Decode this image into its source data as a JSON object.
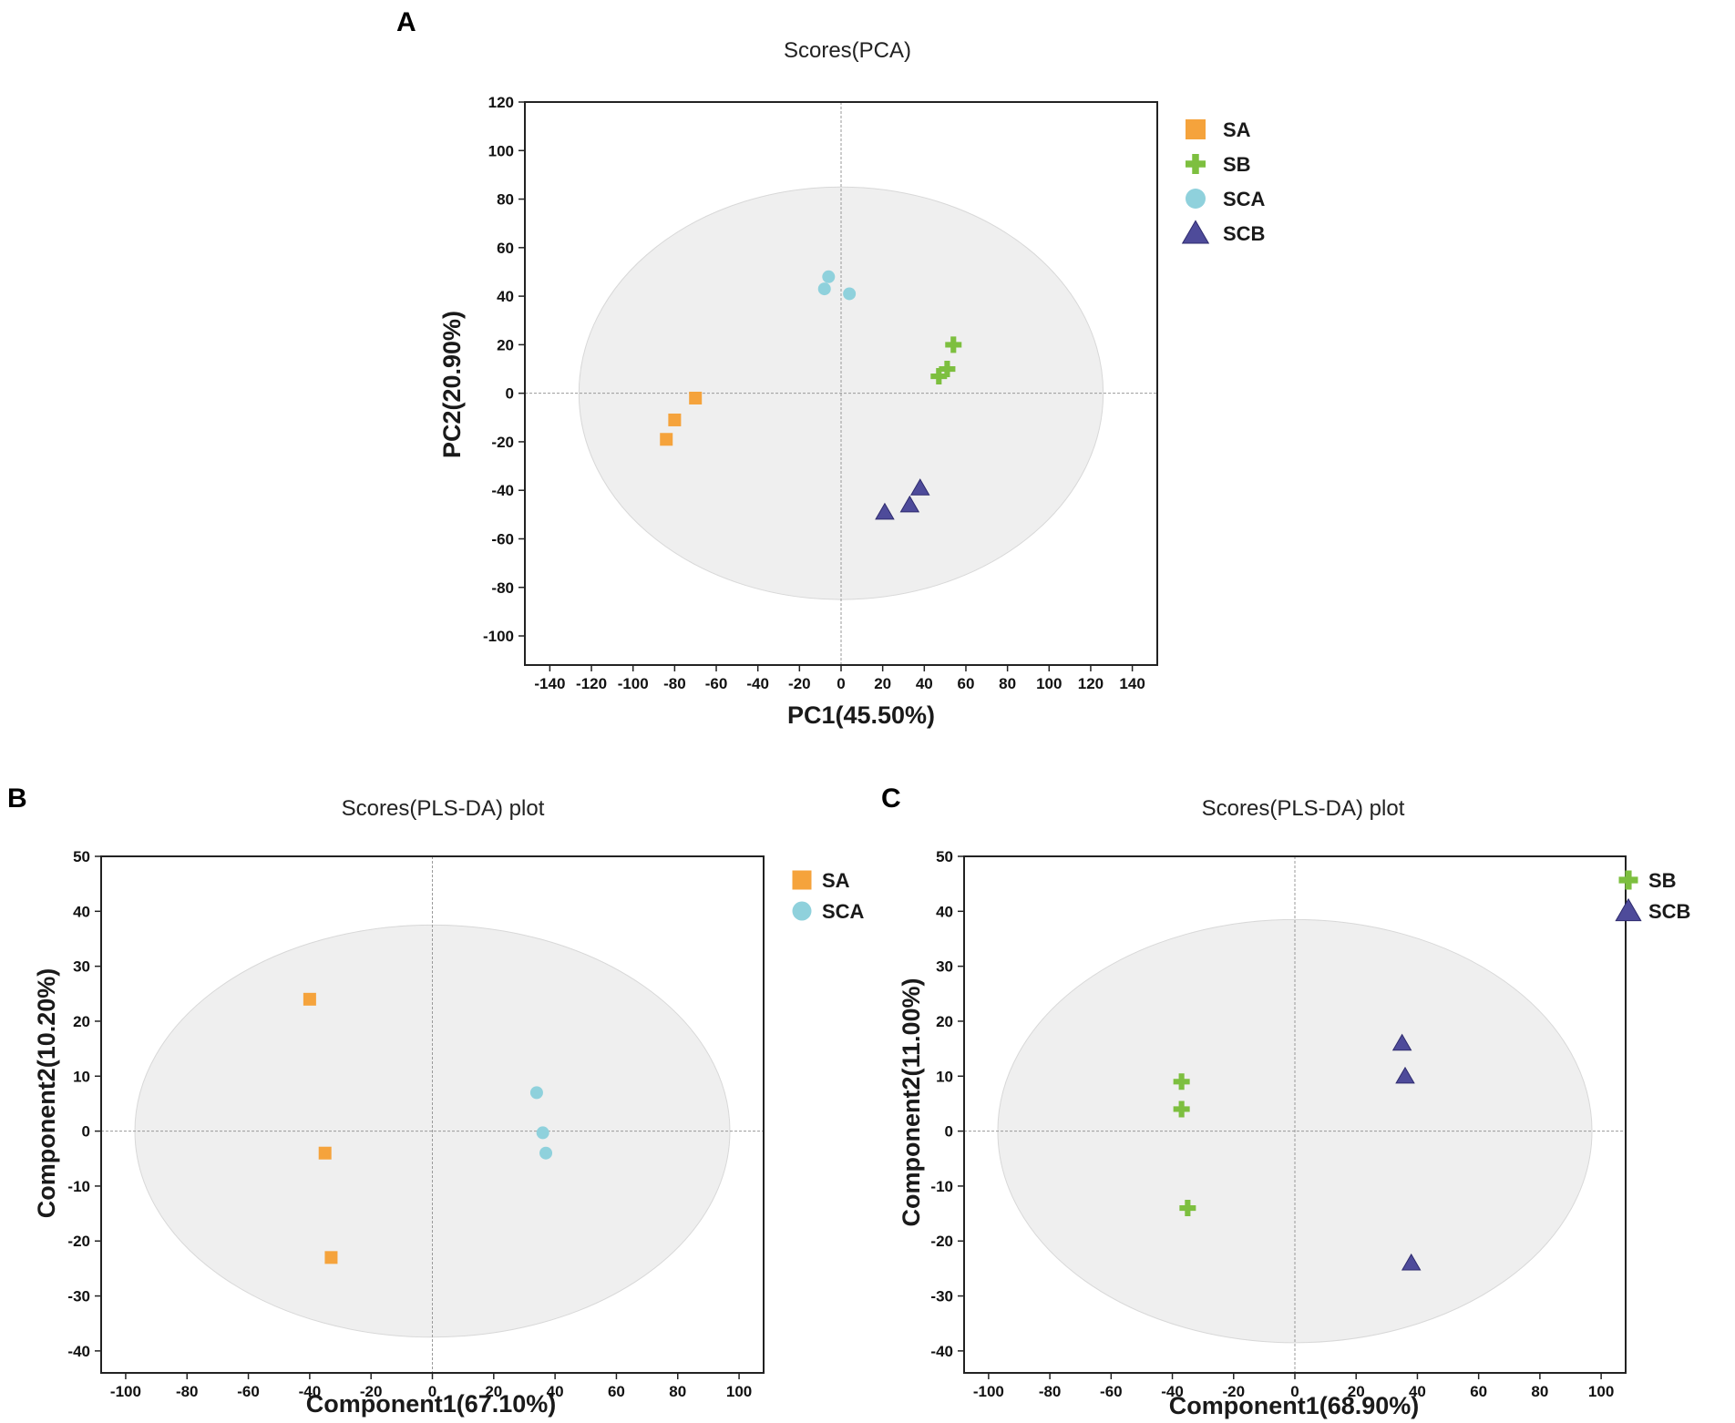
{
  "colors": {
    "SA": "#F5A33C",
    "SB": "#7DBF3F",
    "SCA": "#8FD1DC",
    "SCB": "#4E4B9A",
    "ellipse_fill": "#EFEFEF",
    "ellipse_stroke": "#D8D8D8",
    "frame": "#222222",
    "zero_line": "#9A9A9A"
  },
  "chart_data": [
    {
      "id": "A",
      "type": "scatter",
      "panel_label": "A",
      "title": "Scores(PCA)",
      "xlabel": "PC1(45.50%)",
      "ylabel": "PC2(20.90%)",
      "xlim": [
        -152,
        152
      ],
      "ylim": [
        -112,
        120
      ],
      "xticks": [
        -140,
        -120,
        -100,
        -80,
        -60,
        -40,
        -20,
        0,
        20,
        40,
        60,
        80,
        100,
        120,
        140
      ],
      "yticks": [
        -100,
        -80,
        -60,
        -40,
        -20,
        0,
        20,
        40,
        60,
        80,
        100,
        120
      ],
      "ellipse": {
        "cx": 0,
        "cy": 0,
        "rx": 126,
        "ry": 85
      },
      "legend": [
        "SA",
        "SB",
        "SCA",
        "SCB"
      ],
      "legend_position": "right",
      "series": [
        {
          "name": "SA",
          "marker": "square",
          "points": [
            [
              -70,
              -2
            ],
            [
              -80,
              -11
            ],
            [
              -84,
              -19
            ]
          ]
        },
        {
          "name": "SB",
          "marker": "plus",
          "points": [
            [
              54,
              20
            ],
            [
              51,
              10
            ],
            [
              47,
              7
            ]
          ]
        },
        {
          "name": "SCA",
          "marker": "circle",
          "points": [
            [
              -6,
              48
            ],
            [
              -8,
              43
            ],
            [
              4,
              41
            ]
          ]
        },
        {
          "name": "SCB",
          "marker": "triangle",
          "points": [
            [
              38,
              -39
            ],
            [
              33,
              -46
            ],
            [
              21,
              -49
            ]
          ]
        }
      ]
    },
    {
      "id": "B",
      "type": "scatter",
      "panel_label": "B",
      "title": "Scores(PLS-DA) plot",
      "xlabel": "Component1(67.10%)",
      "ylabel": "Component2(10.20%)",
      "xlim": [
        -108,
        108
      ],
      "ylim": [
        -44,
        50
      ],
      "xticks": [
        -100,
        -80,
        -60,
        -40,
        -20,
        0,
        20,
        40,
        60,
        80,
        100
      ],
      "yticks": [
        -40,
        -30,
        -20,
        -10,
        0,
        10,
        20,
        30,
        40,
        50
      ],
      "ellipse": {
        "cx": 0,
        "cy": 0,
        "rx": 97,
        "ry": 37.5
      },
      "legend": [
        "SA",
        "SCA"
      ],
      "legend_position": "right",
      "series": [
        {
          "name": "SA",
          "marker": "square",
          "points": [
            [
              -40,
              24
            ],
            [
              -35,
              -4
            ],
            [
              -33,
              -23
            ]
          ]
        },
        {
          "name": "SCA",
          "marker": "circle",
          "points": [
            [
              34,
              7
            ],
            [
              36,
              -0.3
            ],
            [
              37,
              -4
            ]
          ]
        }
      ]
    },
    {
      "id": "C",
      "type": "scatter",
      "panel_label": "C",
      "title": "Scores(PLS-DA) plot",
      "xlabel": "Component1(68.90%)",
      "ylabel": "Component2(11.00%)",
      "xlim": [
        -108,
        108
      ],
      "ylim": [
        -44,
        50
      ],
      "xticks": [
        -100,
        -80,
        -60,
        -40,
        -20,
        0,
        20,
        40,
        60,
        80,
        100
      ],
      "yticks": [
        -40,
        -30,
        -20,
        -10,
        0,
        10,
        20,
        30,
        40,
        50
      ],
      "ellipse": {
        "cx": 0,
        "cy": 0,
        "rx": 97,
        "ry": 38.5
      },
      "legend": [
        "SB",
        "SCB"
      ],
      "legend_position": "right",
      "series": [
        {
          "name": "SB",
          "marker": "plus",
          "points": [
            [
              -37,
              9
            ],
            [
              -37,
              4
            ],
            [
              -35,
              -14
            ]
          ]
        },
        {
          "name": "SCB",
          "marker": "triangle",
          "points": [
            [
              35,
              16
            ],
            [
              36,
              10
            ],
            [
              38,
              -24
            ]
          ]
        }
      ]
    }
  ]
}
